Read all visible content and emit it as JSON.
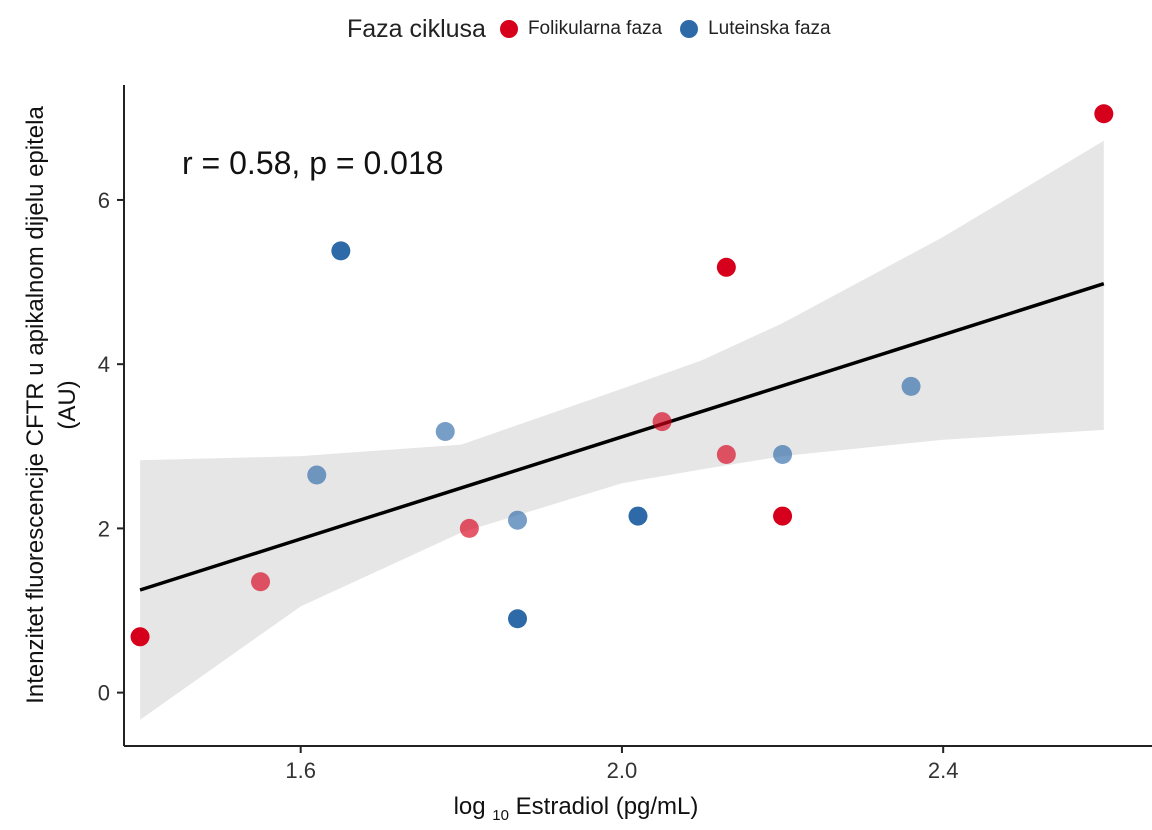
{
  "chart_data": {
    "type": "scatter",
    "legend": {
      "title": "Faza ciklusa",
      "position": "top",
      "entries": [
        {
          "name": "Folikularna faza",
          "color": "#d7001c"
        },
        {
          "name": "Luteinska faza",
          "color": "#2e6aa8"
        }
      ]
    },
    "xlabel": {
      "prefix": "log",
      "subscript": "10",
      "suffix": "Estradiol (pg/mL)"
    },
    "ylabel": [
      "Intenzitet fluorescencije CFTR u apikalnom dijelu epitela",
      "(AU)"
    ],
    "xlim": [
      1.38,
      2.66
    ],
    "ylim": [
      -0.65,
      7.4
    ],
    "x_ticks": [
      1.6,
      2.0,
      2.4
    ],
    "x_tick_labels": [
      "1.6",
      "2.0",
      "2.4"
    ],
    "y_ticks": [
      0,
      2,
      4,
      6
    ],
    "y_tick_labels": [
      "0",
      "2",
      "4",
      "6"
    ],
    "grid": false,
    "annotation": "r = 0.58, p = 0.018",
    "regression": {
      "x": [
        1.4,
        2.6
      ],
      "y": [
        1.25,
        4.98
      ]
    },
    "confidence_band": {
      "x": [
        1.4,
        1.6,
        1.8,
        2.0,
        2.1,
        2.2,
        2.4,
        2.6
      ],
      "lower": [
        -0.33,
        1.05,
        1.95,
        2.55,
        2.72,
        2.88,
        3.08,
        3.2
      ],
      "upper": [
        2.83,
        2.88,
        3.02,
        3.7,
        4.05,
        4.5,
        5.55,
        6.72
      ]
    },
    "series": [
      {
        "name": "Folikularna faza",
        "color": "#d7001c",
        "points": [
          {
            "x": 1.4,
            "y": 0.68,
            "opacity": 1.0
          },
          {
            "x": 1.55,
            "y": 1.35,
            "opacity": 0.65
          },
          {
            "x": 1.81,
            "y": 2.0,
            "opacity": 0.65
          },
          {
            "x": 2.05,
            "y": 3.3,
            "opacity": 0.65
          },
          {
            "x": 2.13,
            "y": 2.9,
            "opacity": 0.65
          },
          {
            "x": 2.13,
            "y": 5.18,
            "opacity": 1.0
          },
          {
            "x": 2.2,
            "y": 2.15,
            "opacity": 1.0
          },
          {
            "x": 2.6,
            "y": 7.05,
            "opacity": 1.0
          }
        ]
      },
      {
        "name": "Luteinska faza",
        "color": "#2e6aa8",
        "points": [
          {
            "x": 1.62,
            "y": 2.65,
            "opacity": 0.65
          },
          {
            "x": 1.65,
            "y": 5.38,
            "opacity": 1.0
          },
          {
            "x": 1.78,
            "y": 3.18,
            "opacity": 0.65
          },
          {
            "x": 1.87,
            "y": 2.1,
            "opacity": 0.65
          },
          {
            "x": 1.87,
            "y": 0.9,
            "opacity": 1.0
          },
          {
            "x": 2.02,
            "y": 2.15,
            "opacity": 1.0
          },
          {
            "x": 2.2,
            "y": 2.9,
            "opacity": 0.65
          },
          {
            "x": 2.36,
            "y": 3.73,
            "opacity": 0.65
          }
        ]
      }
    ]
  }
}
